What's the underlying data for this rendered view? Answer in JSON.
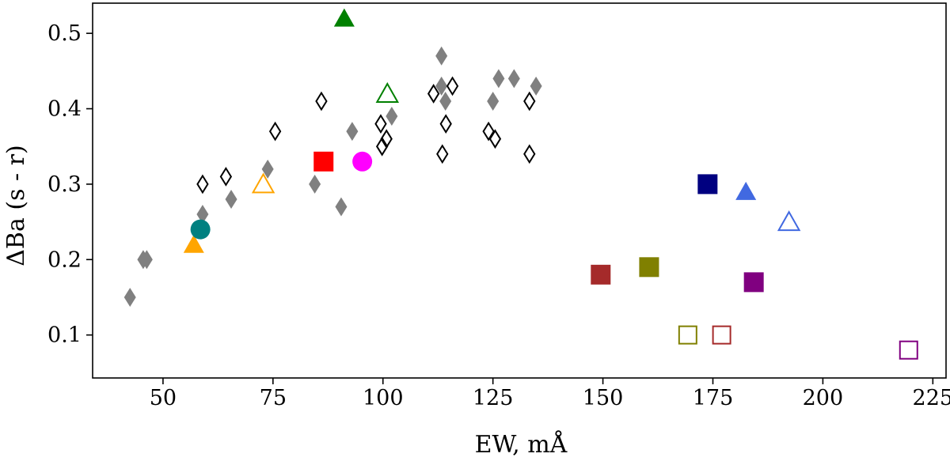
{
  "chart_data": {
    "type": "scatter",
    "title": "",
    "xlabel": "EW, mÅ",
    "ylabel": "ΔBa (s - r)",
    "xlim": [
      34,
      228
    ],
    "ylim": [
      0.043,
      0.54
    ],
    "xticks": [
      50,
      75,
      100,
      125,
      150,
      175,
      200,
      225
    ],
    "xtick_labels": [
      "50",
      "75",
      "100",
      "125",
      "150",
      "175",
      "200",
      "225"
    ],
    "yticks": [
      0.1,
      0.2,
      0.3,
      0.4,
      0.5
    ],
    "ytick_labels": [
      "0.1",
      "0.2",
      "0.3",
      "0.4",
      "0.5"
    ],
    "grid": false,
    "series": [
      {
        "name": "filled-gray-diamonds",
        "marker": "diamond",
        "filled": true,
        "color": "#808080",
        "points": [
          [
            42.5,
            0.15
          ],
          [
            45.5,
            0.2
          ],
          [
            46.3,
            0.2
          ],
          [
            59.0,
            0.26
          ],
          [
            65.5,
            0.28
          ],
          [
            73.8,
            0.32
          ],
          [
            84.5,
            0.3
          ],
          [
            90.5,
            0.27
          ],
          [
            93.0,
            0.37
          ],
          [
            102.0,
            0.39
          ],
          [
            113.3,
            0.47
          ],
          [
            113.3,
            0.43
          ],
          [
            114.2,
            0.41
          ],
          [
            125.0,
            0.41
          ],
          [
            126.3,
            0.44
          ],
          [
            129.8,
            0.44
          ],
          [
            134.8,
            0.43
          ]
        ]
      },
      {
        "name": "open-black-diamonds",
        "marker": "diamond",
        "filled": false,
        "color": "#000000",
        "points": [
          [
            59.0,
            0.3
          ],
          [
            64.3,
            0.31
          ],
          [
            75.5,
            0.37
          ],
          [
            86.0,
            0.41
          ],
          [
            99.5,
            0.38
          ],
          [
            99.8,
            0.35
          ],
          [
            100.8,
            0.36
          ],
          [
            111.5,
            0.42
          ],
          [
            113.5,
            0.34
          ],
          [
            114.3,
            0.38
          ],
          [
            115.8,
            0.43
          ],
          [
            124.0,
            0.37
          ],
          [
            125.5,
            0.36
          ],
          [
            133.3,
            0.41
          ],
          [
            133.3,
            0.34
          ]
        ]
      },
      {
        "name": "orange-triangle-filled",
        "marker": "triangle",
        "filled": true,
        "color": "#FFA500",
        "points": [
          [
            57.0,
            0.22
          ]
        ]
      },
      {
        "name": "orange-triangle-open",
        "marker": "triangle",
        "filled": false,
        "color": "#FFA500",
        "points": [
          [
            72.8,
            0.3
          ]
        ]
      },
      {
        "name": "green-triangle-filled",
        "marker": "triangle",
        "filled": true,
        "color": "#008000",
        "points": [
          [
            91.2,
            0.52
          ]
        ]
      },
      {
        "name": "green-triangle-open",
        "marker": "triangle",
        "filled": false,
        "color": "#008000",
        "points": [
          [
            101.0,
            0.42
          ]
        ]
      },
      {
        "name": "royalblue-triangle-filled",
        "marker": "triangle",
        "filled": true,
        "color": "#4169E1",
        "points": [
          [
            182.5,
            0.29
          ]
        ]
      },
      {
        "name": "royalblue-triangle-open",
        "marker": "triangle",
        "filled": false,
        "color": "#4169E1",
        "points": [
          [
            192.3,
            0.25
          ]
        ]
      },
      {
        "name": "teal-circle",
        "marker": "circle",
        "filled": true,
        "color": "#008080",
        "points": [
          [
            58.5,
            0.24
          ]
        ]
      },
      {
        "name": "magenta-circle",
        "marker": "circle",
        "filled": true,
        "color": "#FF00FF",
        "points": [
          [
            95.3,
            0.33
          ]
        ]
      },
      {
        "name": "red-square",
        "marker": "square",
        "filled": true,
        "color": "#FF0000",
        "points": [
          [
            86.5,
            0.33
          ]
        ]
      },
      {
        "name": "navy-square",
        "marker": "square",
        "filled": true,
        "color": "#000080",
        "points": [
          [
            173.8,
            0.3
          ]
        ]
      },
      {
        "name": "brown-square-filled",
        "marker": "square",
        "filled": true,
        "color": "#A52A2A",
        "points": [
          [
            149.5,
            0.18
          ]
        ]
      },
      {
        "name": "brown-square-open",
        "marker": "square",
        "filled": false,
        "color": "#A52A2A",
        "points": [
          [
            177.0,
            0.1
          ]
        ]
      },
      {
        "name": "olive-square-filled",
        "marker": "square",
        "filled": true,
        "color": "#808000",
        "points": [
          [
            160.5,
            0.19
          ]
        ]
      },
      {
        "name": "olive-square-open",
        "marker": "square",
        "filled": false,
        "color": "#808000",
        "points": [
          [
            169.3,
            0.1
          ]
        ]
      },
      {
        "name": "purple-square-filled",
        "marker": "square",
        "filled": true,
        "color": "#800080",
        "points": [
          [
            184.3,
            0.17
          ]
        ]
      },
      {
        "name": "purple-square-open",
        "marker": "square",
        "filled": false,
        "color": "#800080",
        "points": [
          [
            219.5,
            0.08
          ]
        ]
      }
    ]
  }
}
